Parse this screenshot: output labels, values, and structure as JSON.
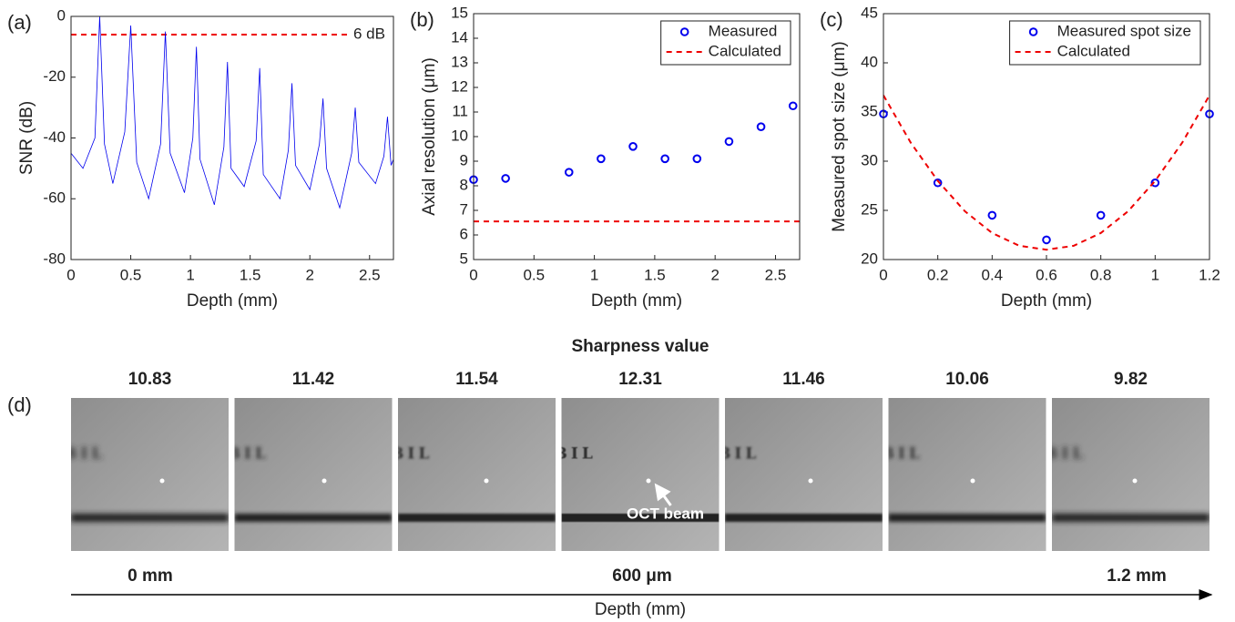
{
  "chart_data": [
    {
      "type": "line",
      "panel": "(a)",
      "xlabel": "Depth (mm)",
      "ylabel": "SNR (dB)",
      "xlim": [
        0,
        2.7
      ],
      "xticks": [
        0,
        0.5,
        1,
        1.5,
        2,
        2.5
      ],
      "ylim": [
        -80,
        0
      ],
      "yticks": [
        -80,
        -60,
        -40,
        -20,
        0
      ],
      "series": [
        {
          "mode": "lines",
          "color": "#0000ee",
          "x": [
            0,
            0.1,
            0.2,
            0.24,
            0.28,
            0.35,
            0.45,
            0.5,
            0.55,
            0.65,
            0.75,
            0.79,
            0.83,
            0.95,
            1.02,
            1.05,
            1.08,
            1.2,
            1.28,
            1.31,
            1.34,
            1.45,
            1.55,
            1.58,
            1.61,
            1.75,
            1.82,
            1.85,
            1.88,
            2.0,
            2.08,
            2.11,
            2.14,
            2.25,
            2.35,
            2.38,
            2.41,
            2.55,
            2.62,
            2.65,
            2.68,
            2.7
          ],
          "values": [
            -45,
            -50,
            -40,
            0,
            -42,
            -55,
            -38,
            -3,
            -48,
            -60,
            -42,
            -5,
            -45,
            -58,
            -40,
            -10,
            -47,
            -62,
            -43,
            -15,
            -50,
            -56,
            -41,
            -17,
            -52,
            -60,
            -44,
            -22,
            -49,
            -57,
            -42,
            -27,
            -50,
            -63,
            -45,
            -30,
            -48,
            -55,
            -46,
            -33,
            -49,
            -47
          ]
        }
      ],
      "hline": {
        "value": -6,
        "label": "6 dB",
        "color": "#ee0000"
      }
    },
    {
      "type": "scatter",
      "panel": "(b)",
      "xlabel": "Depth (mm)",
      "ylabel": "Axial resolution (μm)",
      "xlim": [
        0,
        2.7
      ],
      "xticks": [
        0,
        0.5,
        1,
        1.5,
        2,
        2.5
      ],
      "ylim": [
        5,
        15
      ],
      "yticks": [
        5,
        6,
        7,
        8,
        9,
        10,
        11,
        12,
        13,
        14,
        15
      ],
      "legend": "upper right",
      "series": [
        {
          "name": "Measured",
          "mode": "markers",
          "color": "#0000ee",
          "x": [
            0,
            0.265,
            0.79,
            1.055,
            1.32,
            1.585,
            1.85,
            2.115,
            2.38,
            2.645
          ],
          "values": [
            8.25,
            8.3,
            8.55,
            9.1,
            9.6,
            9.1,
            9.1,
            9.8,
            10.4,
            11.25
          ]
        },
        {
          "name": "Calculated",
          "mode": "lines",
          "dash": true,
          "color": "#ee0000",
          "x": [
            0,
            2.7
          ],
          "values": [
            6.55,
            6.55
          ]
        }
      ]
    },
    {
      "type": "scatter",
      "panel": "(c)",
      "xlabel": "Depth (mm)",
      "ylabel": "Measured spot size (μm)",
      "xlim": [
        0,
        1.2
      ],
      "xticks": [
        0,
        0.2,
        0.4,
        0.6,
        0.8,
        1,
        1.2
      ],
      "ylim": [
        20,
        45
      ],
      "yticks": [
        20,
        25,
        30,
        35,
        40,
        45
      ],
      "legend": "upper right",
      "series": [
        {
          "name": "Measured spot size",
          "mode": "markers",
          "color": "#0000ee",
          "x": [
            0,
            0.2,
            0.4,
            0.6,
            0.8,
            1,
            1.2
          ],
          "values": [
            34.8,
            27.8,
            24.5,
            22,
            24.5,
            27.8,
            34.8
          ]
        },
        {
          "name": "Calculated",
          "mode": "lines",
          "dash": true,
          "color": "#ee0000",
          "x": [
            0,
            0.1,
            0.2,
            0.3,
            0.4,
            0.5,
            0.6,
            0.7,
            0.8,
            0.9,
            1,
            1.1,
            1.2
          ],
          "values": [
            36.7,
            31.9,
            28.0,
            24.9,
            22.7,
            21.4,
            21.0,
            21.4,
            22.7,
            24.9,
            28.0,
            31.9,
            36.7
          ]
        }
      ]
    },
    {
      "type": "image_strip",
      "panel": "(d)",
      "title": "Sharpness value",
      "values": [
        10.83,
        11.42,
        11.54,
        12.31,
        11.46,
        10.06,
        9.82
      ],
      "image_text": "BIL",
      "annotation": "OCT beam",
      "depth_labels": [
        "0 mm",
        "600 μm",
        "1.2 mm"
      ],
      "xlabel": "Depth (mm)"
    }
  ]
}
